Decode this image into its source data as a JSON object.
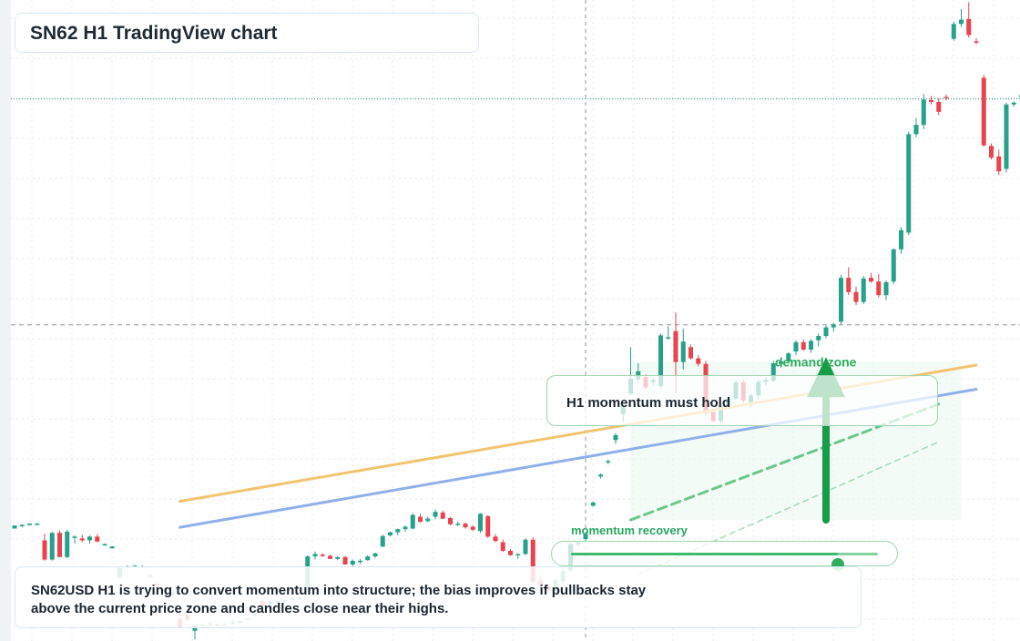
{
  "header": {
    "title": "SN62 H1 TradingView chart"
  },
  "note": {
    "text": "H1 momentum must hold"
  },
  "zone": {
    "label": "demand zone"
  },
  "slider": {
    "label": "momentum recovery",
    "value": 0.87
  },
  "caption": {
    "text": "SN62USD H1 is trying to convert momentum into structure; the bias improves if pullbacks stay above the current price zone and candles close near their highs."
  },
  "colors": {
    "bullish": "#26a18a",
    "bearish": "#e8434e",
    "resistance_line": "#f2c46f",
    "support_line": "#8fb0ea",
    "trend_dashed": "#6cc78b",
    "arrow": "#169c47",
    "zone_fill": "#eaf8ee",
    "zone_label": "#2fae5e"
  },
  "chart_data": {
    "type": "candlestick",
    "symbol": "SN62USD",
    "timeframe": "H1",
    "title": "",
    "xlabel": "",
    "ylabel": "",
    "x_range": [
      0,
      129
    ],
    "ylim": [
      0,
      100
    ],
    "grid": true,
    "crosshair": {
      "x": 76,
      "y": 49
    },
    "last_price_level": 85.5,
    "candles": [
      [
        16.1,
        16.6,
        16.1,
        16.6
      ],
      [
        16.6,
        16.8,
        16.3,
        16.7
      ],
      [
        16.7,
        16.9,
        16.6,
        16.9
      ],
      [
        16.8,
        17.0,
        16.7,
        16.9
      ],
      [
        14.2,
        15.3,
        10.9,
        11.1
      ],
      [
        11.1,
        15.6,
        10.9,
        15.4
      ],
      [
        15.4,
        15.8,
        11.5,
        11.5
      ],
      [
        11.5,
        15.9,
        11.3,
        15.6
      ],
      [
        14.6,
        15.0,
        13.7,
        14.8
      ],
      [
        14.5,
        15.1,
        13.9,
        14.2
      ],
      [
        14.2,
        15.0,
        13.7,
        14.8
      ],
      [
        14.8,
        15.2,
        13.9,
        14.0
      ],
      [
        13.4,
        13.7,
        13.3,
        13.6
      ],
      [
        12.9,
        13.3,
        12.9,
        13.2
      ],
      [
        8.2,
        9.8,
        8.0,
        9.8
      ],
      [
        9.9,
        10.2,
        9.7,
        10.0
      ],
      [
        9.9,
        10.2,
        9.8,
        10.1
      ],
      [
        9.9,
        10.2,
        9.8,
        10.0
      ],
      [
        8.6,
        8.7,
        8.1,
        8.3
      ],
      [
        7.2,
        7.5,
        6.6,
        6.8
      ],
      [
        6.3,
        6.5,
        5.4,
        5.9
      ],
      [
        5.4,
        5.9,
        5.3,
        5.7
      ],
      [
        1.5,
        3.3,
        0.0,
        0.1
      ],
      [
        2.2,
        3.0,
        1.2,
        1.4
      ],
      [
        -0.4,
        0.8,
        -1.8,
        0.5
      ],
      [
        0.5,
        0.8,
        0.1,
        0.6
      ],
      [
        0.6,
        1.1,
        0.4,
        0.8
      ],
      [
        0.6,
        0.9,
        0.2,
        0.6
      ],
      [
        0.6,
        0.8,
        0.4,
        0.7
      ],
      [
        1.0,
        1.4,
        0.6,
        1.0
      ],
      [
        0.9,
        1.2,
        0.7,
        1.1
      ],
      [
        1.4,
        1.7,
        1.3,
        1.6
      ],
      [
        2.2,
        2.6,
        1.9,
        2.4
      ],
      [
        4.4,
        4.6,
        3.1,
        3.6
      ],
      [
        3.8,
        4.7,
        3.3,
        4.4
      ],
      [
        4.1,
        4.6,
        3.9,
        4.4
      ],
      [
        4.4,
        4.7,
        4.1,
        4.6
      ],
      [
        4.6,
        5.0,
        4.4,
        4.8
      ],
      [
        4.9,
        5.2,
        4.7,
        4.9
      ],
      [
        6.4,
        11.8,
        6.4,
        11.6
      ],
      [
        11.6,
        12.4,
        11.1,
        12.0
      ],
      [
        11.9,
        12.1,
        11.5,
        11.7
      ],
      [
        11.7,
        11.9,
        11.2,
        11.2
      ],
      [
        11.2,
        11.6,
        11.0,
        11.5
      ],
      [
        11.5,
        11.7,
        10.3,
        10.3
      ],
      [
        10.3,
        11.1,
        10.0,
        10.9
      ],
      [
        10.9,
        11.2,
        10.4,
        10.9
      ],
      [
        11.0,
        11.8,
        10.9,
        11.6
      ],
      [
        11.6,
        12.2,
        11.4,
        12.1
      ],
      [
        13.2,
        15.1,
        13.1,
        14.9
      ],
      [
        15.0,
        15.6,
        14.8,
        15.5
      ],
      [
        15.5,
        16.1,
        15.0,
        16.0
      ],
      [
        16.0,
        16.6,
        15.6,
        16.4
      ],
      [
        16.1,
        18.6,
        16.0,
        18.3
      ],
      [
        18.0,
        18.5,
        17.0,
        17.2
      ],
      [
        17.3,
        18.0,
        17.1,
        17.7
      ],
      [
        18.0,
        19.2,
        17.6,
        18.8
      ],
      [
        18.7,
        19.0,
        17.6,
        17.7
      ],
      [
        17.8,
        18.0,
        16.6,
        16.8
      ],
      [
        16.9,
        17.2,
        16.5,
        16.9
      ],
      [
        16.9,
        17.1,
        16.1,
        16.3
      ],
      [
        16.4,
        16.6,
        15.7,
        15.9
      ],
      [
        15.7,
        18.6,
        15.4,
        18.5
      ],
      [
        18.1,
        18.3,
        14.6,
        14.8
      ],
      [
        14.8,
        15.2,
        13.9,
        14.1
      ],
      [
        13.9,
        14.3,
        12.3,
        12.5
      ],
      [
        12.5,
        12.8,
        11.7,
        11.8
      ],
      [
        11.8,
        12.1,
        11.2,
        12.0
      ],
      [
        12.0,
        14.5,
        11.8,
        14.3
      ],
      [
        14.3,
        14.7,
        7.2,
        7.5
      ],
      [
        7.7,
        8.3,
        6.6,
        6.9
      ],
      [
        6.8,
        7.2,
        5.8,
        6.1
      ],
      [
        6.0,
        8.0,
        5.8,
        7.7
      ],
      [
        7.6,
        9.6,
        7.2,
        9.2
      ],
      [
        9.3,
        13.8,
        9.2,
        13.6
      ],
      [
        13.6,
        14.1,
        13.2,
        13.9
      ],
      [
        14.4,
        15.4,
        14.0,
        15.2
      ],
      [
        19.8,
        20.5,
        19.6,
        20.3
      ],
      [
        24.5,
        25.0,
        24.2,
        24.8
      ],
      [
        26.8,
        27.2,
        26.5,
        27.0
      ],
      [
        30.4,
        31.5,
        29.8,
        31.2
      ],
      [
        34.6,
        36.1,
        33.3,
        35.9
      ],
      [
        37.9,
        45.4,
        37.6,
        40.3
      ],
      [
        40.2,
        42.8,
        39.6,
        41.5
      ],
      [
        40.6,
        41.0,
        38.6,
        38.9
      ],
      [
        39.8,
        40.4,
        39.1,
        40.1
      ],
      [
        39.1,
        47.6,
        38.8,
        47.3
      ],
      [
        47.0,
        48.8,
        46.6,
        47.0
      ],
      [
        48.0,
        51.0,
        38.0,
        43.0
      ],
      [
        43.0,
        48.4,
        41.8,
        46.3
      ],
      [
        45.4,
        45.8,
        43.4,
        43.6
      ],
      [
        43.6,
        44.1,
        42.3,
        42.7
      ],
      [
        42.7,
        43.2,
        34.5,
        34.8
      ],
      [
        34.9,
        35.4,
        33.2,
        33.5
      ],
      [
        33.5,
        36.2,
        33.1,
        35.9
      ],
      [
        35.9,
        37.4,
        35.4,
        37.1
      ],
      [
        37.1,
        40.1,
        36.8,
        39.7
      ],
      [
        39.7,
        40.1,
        36.4,
        36.8
      ],
      [
        36.4,
        38.0,
        35.6,
        37.6
      ],
      [
        37.6,
        40.1,
        36.9,
        39.8
      ],
      [
        39.8,
        40.5,
        39.2,
        40.1
      ],
      [
        40.0,
        43.2,
        39.7,
        42.8
      ],
      [
        42.7,
        43.2,
        42.1,
        43.1
      ],
      [
        43.1,
        44.6,
        42.8,
        44.4
      ],
      [
        44.7,
        46.5,
        44.1,
        46.2
      ],
      [
        46.2,
        46.6,
        44.8,
        45.0
      ],
      [
        45.0,
        46.7,
        44.5,
        46.4
      ],
      [
        46.5,
        47.6,
        45.5,
        47.2
      ],
      [
        47.2,
        48.9,
        46.9,
        48.6
      ],
      [
        48.6,
        49.3,
        47.9,
        49.1
      ],
      [
        49.5,
        57.1,
        49.1,
        56.6
      ],
      [
        56.6,
        58.3,
        53.8,
        54.3
      ],
      [
        54.3,
        55.2,
        52.2,
        52.7
      ],
      [
        52.7,
        56.9,
        52.4,
        56.5
      ],
      [
        56.6,
        57.4,
        55.8,
        56.0
      ],
      [
        56.0,
        57.2,
        53.4,
        53.8
      ],
      [
        53.8,
        56.2,
        53.0,
        55.9
      ],
      [
        56.0,
        61.4,
        55.6,
        61.2
      ],
      [
        61.2,
        64.8,
        60.5,
        64.3
      ],
      [
        63.9,
        80.2,
        63.5,
        79.8
      ],
      [
        79.8,
        82.4,
        79.3,
        81.3
      ],
      [
        81.3,
        86.3,
        80.6,
        85.4
      ],
      [
        85.3,
        86.0,
        84.6,
        85.0
      ],
      [
        85.0,
        85.6,
        82.9,
        83.4
      ],
      [
        85.8,
        86.2,
        85.3,
        85.7
      ],
      [
        95.2,
        98.0,
        94.9,
        97.6
      ],
      [
        97.6,
        100.0,
        97.1,
        98.3
      ],
      [
        98.4,
        101.1,
        95.4,
        95.8
      ],
      [
        94.8,
        95.3,
        94.3,
        94.6
      ],
      [
        88.9,
        89.4,
        77.8,
        78.0
      ],
      [
        77.9,
        78.3,
        75.7,
        76.0
      ],
      [
        76.2,
        77.3,
        73.2,
        73.8
      ],
      [
        74.2,
        84.9,
        73.6,
        84.6
      ],
      [
        84.6,
        85.1,
        84.2,
        84.9
      ],
      [
        85.8,
        86.4,
        85.5,
        86.1
      ]
    ],
    "trend_lines": [
      {
        "type": "resistance",
        "from": [
          22,
          20.5
        ],
        "to": [
          128,
          42.5
        ]
      },
      {
        "type": "support",
        "from": [
          22,
          16.3
        ],
        "to": [
          128,
          38.6
        ]
      },
      {
        "type": "dashed",
        "from": [
          82,
          17.5
        ],
        "to": [
          123,
          36.2
        ]
      },
      {
        "type": "dashed",
        "from": [
          83,
          8.7
        ],
        "to": [
          123,
          30.1
        ]
      }
    ],
    "zone": {
      "x_range": [
        82,
        126
      ],
      "y_range": [
        17.5,
        43
      ]
    },
    "arrow": {
      "x": 108,
      "from_y": 17.5,
      "to_y": 43.5
    }
  }
}
